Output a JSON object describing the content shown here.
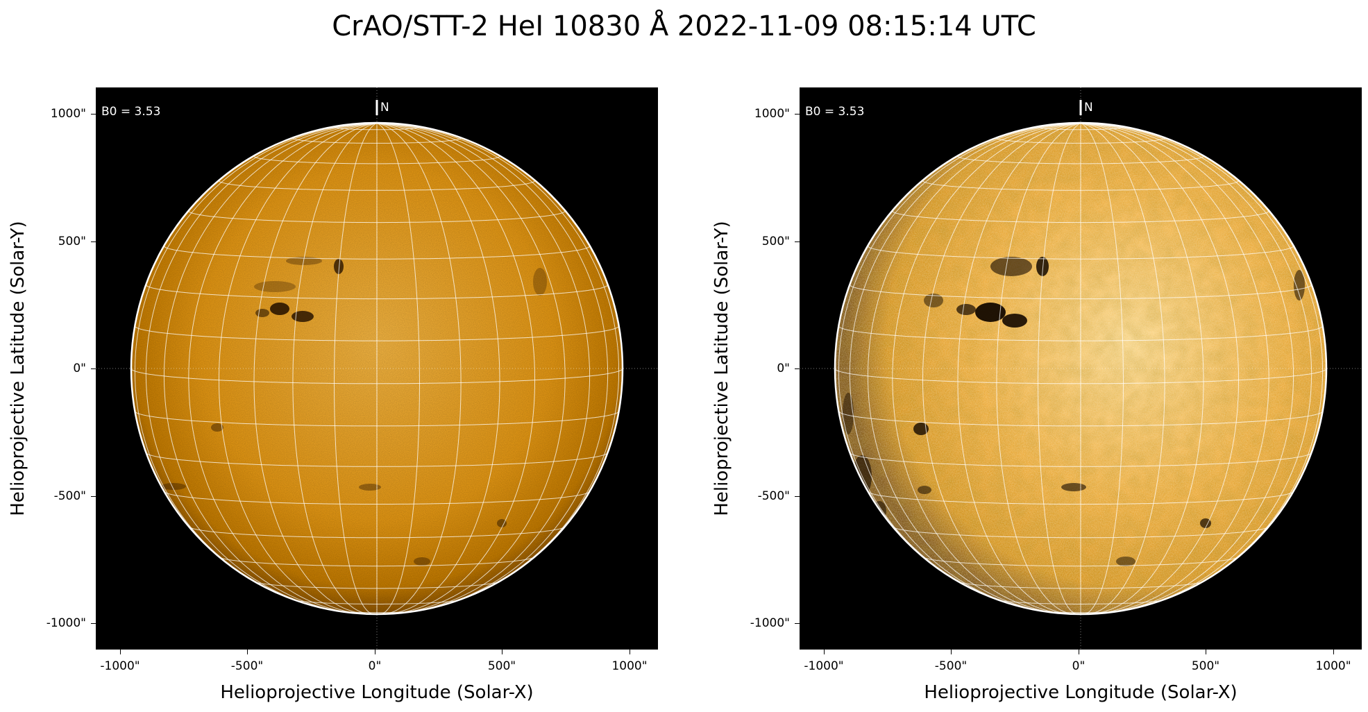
{
  "title": "CrAO/STT-2 HeI 10830 Å 2022-11-09 08:15:14 UTC",
  "colors": {
    "background": "#000000",
    "disk_center": "#f6b23a",
    "disk_edge": "#b86f00",
    "limb": "#ffffff",
    "grid": "#ffffff"
  },
  "panels": [
    {
      "b0_label": "B0 = 3.53",
      "north_label": "N",
      "xlabel": "Helioprojective Longitude (Solar-X)",
      "ylabel": "Helioprojective Latitude (Solar-Y)",
      "xticks": [
        "-1000\"",
        "-500\"",
        "0\"",
        "500\"",
        "1000\""
      ],
      "yticks": [
        "1000\"",
        "500\"",
        "0\"",
        "-500\"",
        "-1000\""
      ],
      "contrast": "normal"
    },
    {
      "b0_label": "B0 = 3.53",
      "north_label": "N",
      "xlabel": "Helioprojective Longitude (Solar-X)",
      "ylabel": "Helioprojective Latitude (Solar-Y)",
      "xticks": [
        "-1000\"",
        "-500\"",
        "0\"",
        "500\"",
        "1000\""
      ],
      "yticks": [
        "1000\"",
        "500\"",
        "0\"",
        "-500\"",
        "-1000\""
      ],
      "contrast": "enhanced"
    }
  ]
}
